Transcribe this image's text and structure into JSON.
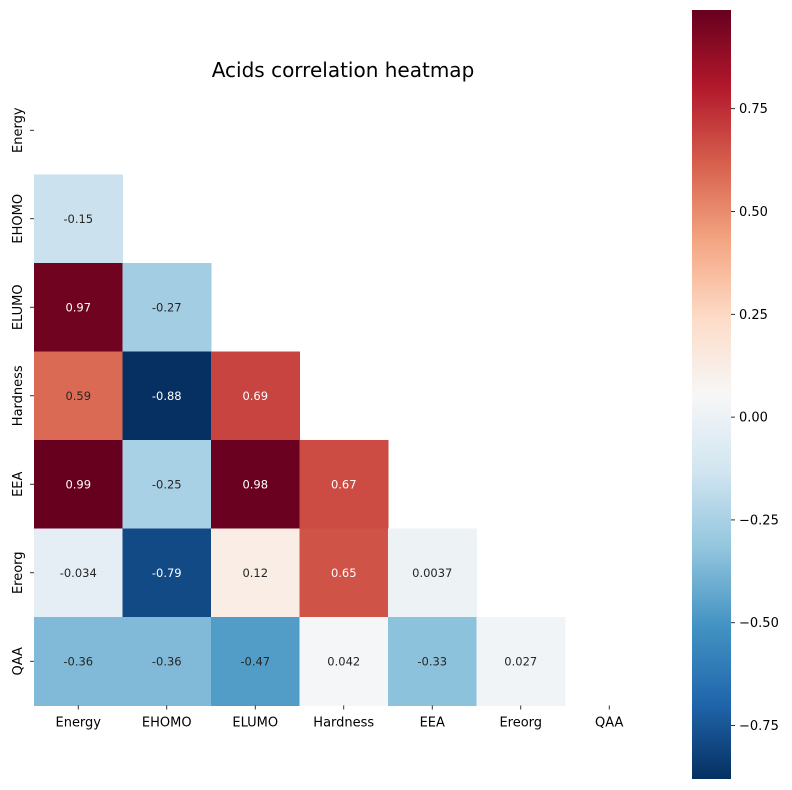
{
  "chart_data": {
    "type": "heatmap",
    "title": "Acids correlation heatmap",
    "xlabel": "",
    "ylabel": "",
    "labels": [
      "Energy",
      "EHOMO",
      "ELUMO",
      "Hardness",
      "EEA",
      "Ereorg",
      "QAA"
    ],
    "mask": "upper-triangle-including-diagonal",
    "cells": [
      {
        "row": "EHOMO",
        "col": "Energy",
        "value": -0.15,
        "text": "-0.15"
      },
      {
        "row": "ELUMO",
        "col": "Energy",
        "value": 0.97,
        "text": "0.97"
      },
      {
        "row": "ELUMO",
        "col": "EHOMO",
        "value": -0.27,
        "text": "-0.27"
      },
      {
        "row": "Hardness",
        "col": "Energy",
        "value": 0.59,
        "text": "0.59"
      },
      {
        "row": "Hardness",
        "col": "EHOMO",
        "value": -0.88,
        "text": "-0.88"
      },
      {
        "row": "Hardness",
        "col": "ELUMO",
        "value": 0.69,
        "text": "0.69"
      },
      {
        "row": "EEA",
        "col": "Energy",
        "value": 0.99,
        "text": "0.99"
      },
      {
        "row": "EEA",
        "col": "EHOMO",
        "value": -0.25,
        "text": "-0.25"
      },
      {
        "row": "EEA",
        "col": "ELUMO",
        "value": 0.98,
        "text": "0.98"
      },
      {
        "row": "EEA",
        "col": "Hardness",
        "value": 0.67,
        "text": "0.67"
      },
      {
        "row": "Ereorg",
        "col": "Energy",
        "value": -0.034,
        "text": "-0.034"
      },
      {
        "row": "Ereorg",
        "col": "EHOMO",
        "value": -0.79,
        "text": "-0.79"
      },
      {
        "row": "Ereorg",
        "col": "ELUMO",
        "value": 0.12,
        "text": "0.12"
      },
      {
        "row": "Ereorg",
        "col": "Hardness",
        "value": 0.65,
        "text": "0.65"
      },
      {
        "row": "Ereorg",
        "col": "EEA",
        "value": 0.0037,
        "text": "0.0037"
      },
      {
        "row": "QAA",
        "col": "Energy",
        "value": -0.36,
        "text": "-0.36"
      },
      {
        "row": "QAA",
        "col": "EHOMO",
        "value": -0.36,
        "text": "-0.36"
      },
      {
        "row": "QAA",
        "col": "ELUMO",
        "value": -0.47,
        "text": "-0.47"
      },
      {
        "row": "QAA",
        "col": "Hardness",
        "value": 0.042,
        "text": "0.042"
      },
      {
        "row": "QAA",
        "col": "EEA",
        "value": -0.33,
        "text": "-0.33"
      },
      {
        "row": "QAA",
        "col": "Ereorg",
        "value": 0.027,
        "text": "0.027"
      }
    ],
    "colorbar": {
      "colormap": "RdBu_r",
      "vmin": -0.88,
      "vmax": 0.99,
      "ticks": [
        -0.75,
        -0.5,
        -0.25,
        0.0,
        0.25,
        0.5,
        0.75
      ],
      "tick_labels": [
        "−0.75",
        "−0.50",
        "−0.25",
        "0.00",
        "0.25",
        "0.50",
        "0.75"
      ]
    },
    "grid": false,
    "legend": "colorbar-right"
  }
}
